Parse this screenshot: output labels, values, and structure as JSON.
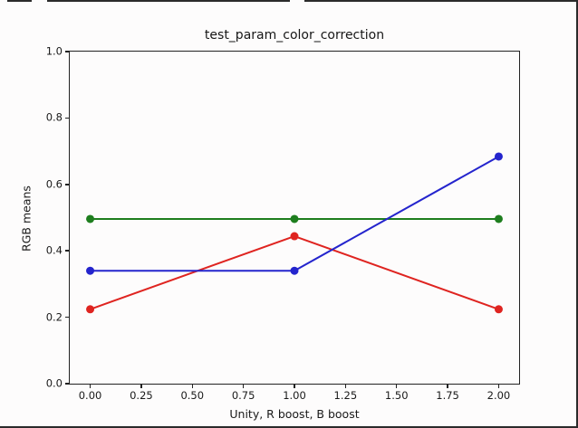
{
  "figure": {
    "background": "#fdfcfc",
    "spine_color": "#222222",
    "text_color": "#1a1a1a",
    "edge_artifact_color": "#2b2b2b"
  },
  "chart_data": {
    "type": "line",
    "title": "test_param_color_correction",
    "xlabel": "Unity, R boost, B boost",
    "ylabel": "RGB means",
    "x": [
      0.0,
      1.0,
      2.0
    ],
    "series": [
      {
        "name": "red",
        "color": "#df2420",
        "values": [
          0.224,
          0.444,
          0.224
        ]
      },
      {
        "name": "green",
        "color": "#1e7e1e",
        "values": [
          0.496,
          0.496,
          0.496
        ]
      },
      {
        "name": "blue",
        "color": "#2424cd",
        "values": [
          0.34,
          0.34,
          0.684
        ]
      }
    ],
    "marker": "circle",
    "marker_radius": 4.5,
    "line_width": 2,
    "xlim": [
      -0.1,
      2.1
    ],
    "ylim": [
      0.0,
      1.0
    ],
    "xticks": [
      "0.00",
      "0.25",
      "0.50",
      "0.75",
      "1.00",
      "1.25",
      "1.50",
      "1.75",
      "2.00"
    ],
    "xtick_values": [
      0.0,
      0.25,
      0.5,
      0.75,
      1.0,
      1.25,
      1.5,
      1.75,
      2.0
    ],
    "yticks": [
      "0.0",
      "0.2",
      "0.4",
      "0.6",
      "0.8",
      "1.0"
    ],
    "ytick_values": [
      0.0,
      0.2,
      0.4,
      0.6,
      0.8,
      1.0
    ],
    "grid": false,
    "legend": null
  }
}
